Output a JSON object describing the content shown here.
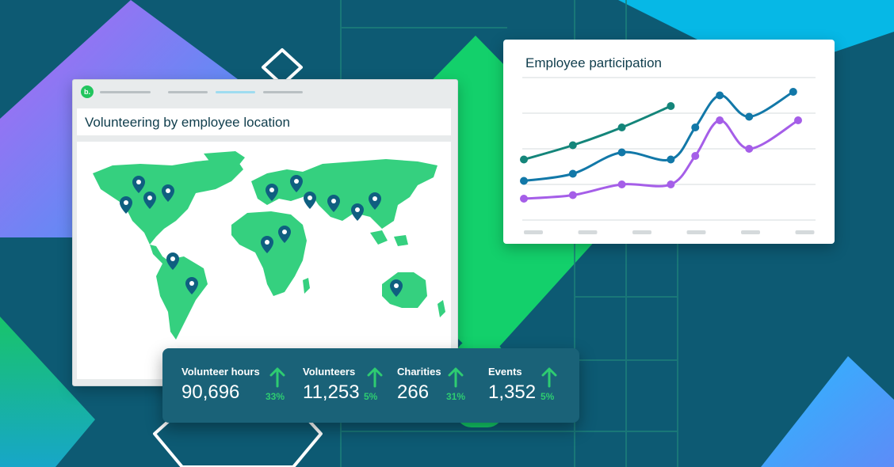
{
  "map_window": {
    "logo_text": "b.",
    "title": "Volunteering by employee location"
  },
  "participation_chart": {
    "title": "Employee participation"
  },
  "chart_data": {
    "type": "line",
    "title": "Employee participation",
    "xlabel": "",
    "ylabel": "",
    "grid": true,
    "series": [
      {
        "color": "#14857a",
        "points": [
          [
            0,
            3.7
          ],
          [
            1,
            4.1
          ],
          [
            2,
            4.6
          ],
          [
            3,
            5.2
          ]
        ]
      },
      {
        "color": "#1278a8",
        "points": [
          [
            0,
            3.1
          ],
          [
            1,
            3.3
          ],
          [
            2,
            3.9
          ],
          [
            3,
            3.7
          ],
          [
            3.5,
            4.6
          ],
          [
            4,
            5.5
          ],
          [
            4.6,
            4.9
          ],
          [
            5.5,
            5.6
          ]
        ]
      },
      {
        "color": "#a55ee8",
        "points": [
          [
            0,
            2.6
          ],
          [
            1,
            2.7
          ],
          [
            2,
            3.0
          ],
          [
            3,
            3.0
          ],
          [
            3.5,
            3.8
          ],
          [
            4,
            4.8
          ],
          [
            4.6,
            4.0
          ],
          [
            5.6,
            4.8
          ]
        ]
      }
    ]
  },
  "stats": [
    {
      "label": "Volunteer hours",
      "value": "90,696",
      "change": "33%"
    },
    {
      "label": "Volunteers",
      "value": "11,253",
      "change": "5%"
    },
    {
      "label": "Charities",
      "value": "266",
      "change": "31%"
    },
    {
      "label": "Events",
      "value": "1,352",
      "change": "5%"
    }
  ],
  "colors": {
    "background": "#0d5a73",
    "accent_green": "#22c55e",
    "map_green": "#35d07f",
    "pin": "#0f5f80",
    "stats_panel": "#1a6278",
    "up_arrow": "#2ecc71"
  },
  "icons": {
    "pin": "map-pin-icon",
    "up": "arrow-up-icon",
    "logo": "app-logo-icon"
  }
}
